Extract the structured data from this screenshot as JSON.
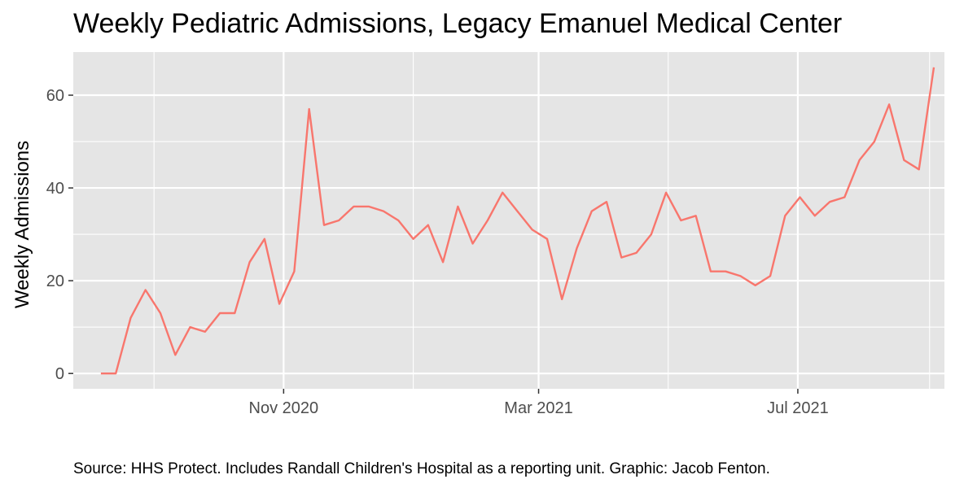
{
  "chart_data": {
    "type": "line",
    "title": "Weekly Pediatric Admissions, Legacy Emanuel Medical Center",
    "ylabel": "Weekly Admissions",
    "xlabel": "",
    "caption": "Source: HHS Protect. Includes Randall Children's Hospital as a reporting unit. Graphic: Jacob Fenton.",
    "ylim": [
      -3.3,
      69.3
    ],
    "xlim": [
      "2020-07-25",
      "2021-09-08"
    ],
    "yticks": [
      0,
      20,
      40,
      60
    ],
    "xticks": [
      {
        "date": "2020-11-01",
        "label": "Nov 2020"
      },
      {
        "date": "2021-03-01",
        "label": "Mar 2021"
      },
      {
        "date": "2021-07-01",
        "label": "Jul 2021"
      }
    ],
    "x_minor_breaks": [
      "2020-09-01",
      "2021-01-01",
      "2021-05-01",
      "2021-09-01"
    ],
    "y_minor_breaks": [
      10,
      30,
      50
    ],
    "grid": true,
    "panel_background": "#e5e5e5",
    "grid_color": "#ffffff",
    "line_color": "#f8766d",
    "series": [
      {
        "x": [
          "2020-08-07",
          "2020-08-14",
          "2020-08-21",
          "2020-08-28",
          "2020-09-04",
          "2020-09-11",
          "2020-09-18",
          "2020-09-25",
          "2020-10-02",
          "2020-10-09",
          "2020-10-16",
          "2020-10-23",
          "2020-10-30",
          "2020-11-06",
          "2020-11-13",
          "2020-11-20",
          "2020-11-27",
          "2020-12-04",
          "2020-12-11",
          "2020-12-18",
          "2020-12-25",
          "2021-01-01",
          "2021-01-08",
          "2021-01-15",
          "2021-01-22",
          "2021-01-29",
          "2021-02-05",
          "2021-02-12",
          "2021-02-19",
          "2021-02-26",
          "2021-03-05",
          "2021-03-12",
          "2021-03-19",
          "2021-03-26",
          "2021-04-02",
          "2021-04-09",
          "2021-04-16",
          "2021-04-23",
          "2021-04-30",
          "2021-05-07",
          "2021-05-14",
          "2021-05-21",
          "2021-05-28",
          "2021-06-04",
          "2021-06-11",
          "2021-06-18",
          "2021-06-25",
          "2021-07-02",
          "2021-07-09",
          "2021-07-16",
          "2021-07-23",
          "2021-07-30",
          "2021-08-06",
          "2021-08-13",
          "2021-08-20",
          "2021-08-27",
          "2021-09-03"
        ],
        "y": [
          0,
          0,
          12,
          18,
          13,
          4,
          10,
          9,
          13,
          13,
          24,
          29,
          15,
          22,
          57,
          32,
          33,
          36,
          36,
          35,
          33,
          29,
          32,
          24,
          36,
          28,
          33,
          39,
          35,
          31,
          29,
          16,
          27,
          35,
          37,
          25,
          26,
          30,
          39,
          33,
          34,
          22,
          22,
          21,
          19,
          21,
          34,
          38,
          34,
          37,
          38,
          46,
          50,
          58,
          46,
          44,
          66
        ]
      }
    ]
  }
}
